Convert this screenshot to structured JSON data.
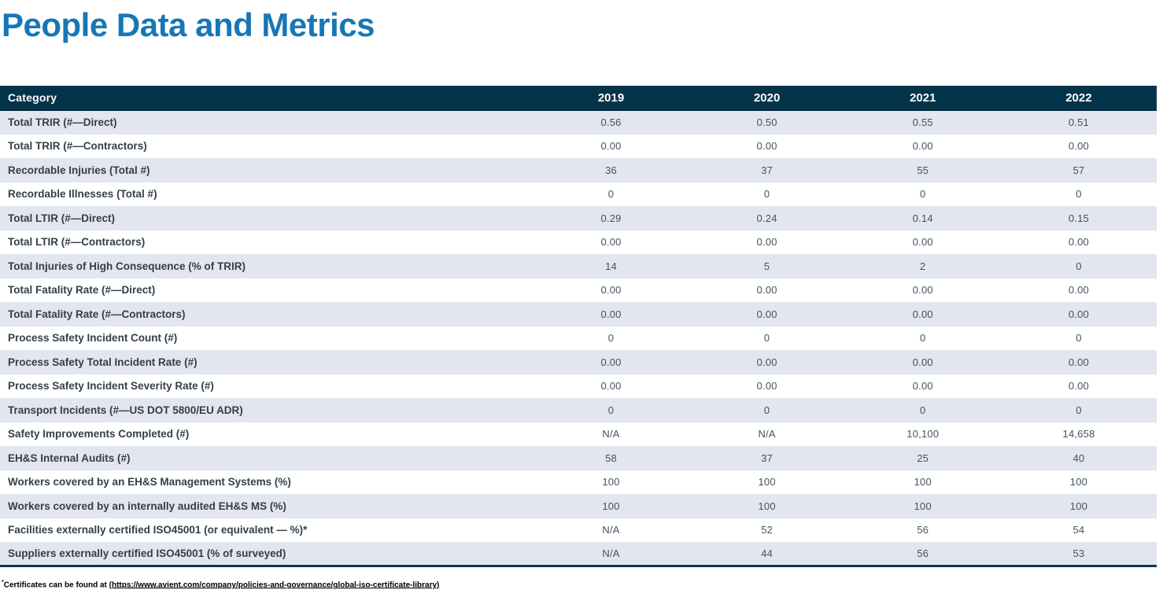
{
  "page_title": "People Data and Metrics",
  "colors": {
    "title_blue": "#1777b6",
    "header_background": "#04344a",
    "header_text": "#ffffff",
    "row_stripe": "#e2e6ef",
    "label_text": "#333f48",
    "value_text": "#47525c",
    "table_bottom_border": "#0b3a50"
  },
  "table": {
    "columns": [
      "Category",
      "2019",
      "2020",
      "2021",
      "2022"
    ],
    "rows": [
      {
        "label": "Total TRIR (#—Direct)",
        "values": [
          "0.56",
          "0.50",
          "0.55",
          "0.51"
        ]
      },
      {
        "label": "Total TRIR (#—Contractors)",
        "values": [
          "0.00",
          "0.00",
          "0.00",
          "0.00"
        ]
      },
      {
        "label": "Recordable Injuries (Total #)",
        "values": [
          "36",
          "37",
          "55",
          "57"
        ]
      },
      {
        "label": "Recordable Illnesses (Total #)",
        "values": [
          "0",
          "0",
          "0",
          "0"
        ]
      },
      {
        "label": "Total LTIR (#—Direct)",
        "values": [
          "0.29",
          "0.24",
          "0.14",
          "0.15"
        ]
      },
      {
        "label": "Total LTIR (#—Contractors)",
        "values": [
          "0.00",
          "0.00",
          "0.00",
          "0.00"
        ]
      },
      {
        "label": "Total Injuries of High Consequence (% of TRIR)",
        "values": [
          "14",
          "5",
          "2",
          "0"
        ]
      },
      {
        "label": "Total Fatality Rate (#—Direct)",
        "values": [
          "0.00",
          "0.00",
          "0.00",
          "0.00"
        ]
      },
      {
        "label": "Total Fatality Rate (#—Contractors)",
        "values": [
          "0.00",
          "0.00",
          "0.00",
          "0.00"
        ]
      },
      {
        "label": "Process Safety Incident Count (#)",
        "values": [
          "0",
          "0",
          "0",
          "0"
        ]
      },
      {
        "label": "Process Safety Total Incident Rate (#)",
        "values": [
          "0.00",
          "0.00",
          "0.00",
          "0.00"
        ]
      },
      {
        "label": "Process Safety Incident Severity Rate (#)",
        "values": [
          "0.00",
          "0.00",
          "0.00",
          "0.00"
        ]
      },
      {
        "label": "Transport Incidents (#—US DOT 5800/EU ADR)",
        "values": [
          "0",
          "0",
          "0",
          "0"
        ]
      },
      {
        "label": "Safety Improvements Completed (#)",
        "values": [
          "N/A",
          "N/A",
          "10,100",
          "14,658"
        ]
      },
      {
        "label": "EH&S Internal Audits (#)",
        "values": [
          "58",
          "37",
          "25",
          "40"
        ]
      },
      {
        "label": "Workers covered by an EH&S Management Systems (%)",
        "values": [
          "100",
          "100",
          "100",
          "100"
        ]
      },
      {
        "label": "Workers covered by an internally audited EH&S MS (%)",
        "values": [
          "100",
          "100",
          "100",
          "100"
        ]
      },
      {
        "label": "Facilities externally certified ISO45001 (or equivalent — %)*",
        "values": [
          "N/A",
          "52",
          "56",
          "54"
        ]
      },
      {
        "label": "Suppliers externally certified ISO45001 (% of surveyed)",
        "values": [
          "N/A",
          "44",
          "56",
          "53"
        ]
      }
    ]
  },
  "footnote": {
    "marker": "*",
    "text": "Certificates can be found at ",
    "link": "(https://www.avient.com/company/policies-and-governance/global-iso-certificate-library)"
  }
}
